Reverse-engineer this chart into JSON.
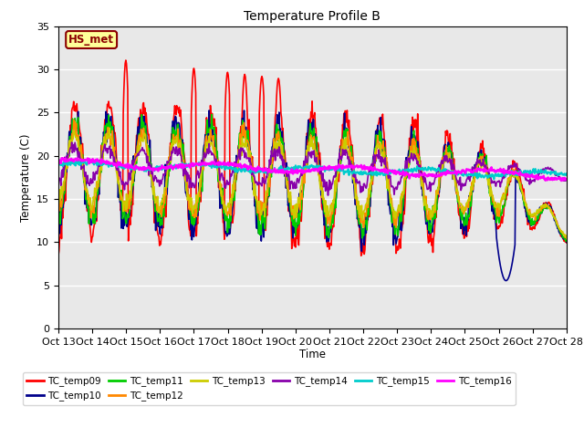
{
  "title": "Temperature Profile B",
  "xlabel": "Time",
  "ylabel": "Temperature (C)",
  "ylim": [
    0,
    35
  ],
  "background_color": "#e8e8e8",
  "annotation_text": "HS_met",
  "annotation_color": "#8B0000",
  "annotation_bg": "#ffff99",
  "legend_entries": [
    "TC_temp09",
    "TC_temp10",
    "TC_temp11",
    "TC_temp12",
    "TC_temp13",
    "TC_temp14",
    "TC_temp15",
    "TC_temp16"
  ],
  "line_colors": [
    "#ff0000",
    "#00008B",
    "#00cc00",
    "#ff8800",
    "#cccc00",
    "#8800aa",
    "#00cccc",
    "#ff00ff"
  ],
  "xtick_labels": [
    "Oct 13",
    "Oct 14",
    "Oct 15",
    "Oct 16",
    "Oct 17",
    "Oct 18",
    "Oct 19",
    "Oct 20",
    "Oct 21",
    "Oct 22",
    "Oct 23",
    "Oct 24",
    "Oct 25",
    "Oct 26",
    "Oct 27",
    "Oct 28"
  ],
  "num_points": 800
}
